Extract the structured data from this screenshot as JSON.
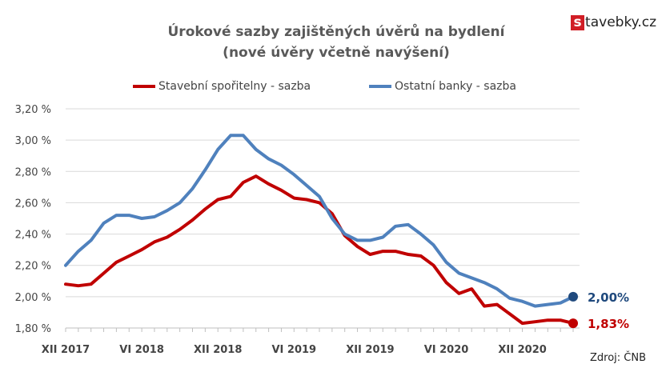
{
  "brand": {
    "logo_letter": "s",
    "logo_rest": "tavebky.cz"
  },
  "source": "Zdroj: ČNB",
  "chart_data": {
    "type": "line",
    "title": "Úrokové sazby zajištěných úvěrů na bydlení",
    "subtitle": "(nové úvěry včetně navýšení)",
    "xlabel": "",
    "ylabel": "",
    "ylim": [
      1.8,
      3.2
    ],
    "yticks": [
      "1,80 %",
      "2,00 %",
      "2,20 %",
      "2,40 %",
      "2,60 %",
      "2,80 %",
      "3,00 %",
      "3,20 %"
    ],
    "ytick_values": [
      1.8,
      2.0,
      2.2,
      2.4,
      2.6,
      2.8,
      3.0,
      3.2
    ],
    "x_tick_labels": [
      {
        "index": 0,
        "label": "XII 2017"
      },
      {
        "index": 6,
        "label": "VI 2018"
      },
      {
        "index": 12,
        "label": "XII 2018"
      },
      {
        "index": 18,
        "label": "VI 2019"
      },
      {
        "index": 24,
        "label": "XII 2019"
      },
      {
        "index": 30,
        "label": "VI 2020"
      },
      {
        "index": 36,
        "label": "XII 2020"
      }
    ],
    "x_count": 41,
    "grid": "horizontal",
    "legend_position": "top",
    "series": [
      {
        "name": "Stavební spořitelny - sazba",
        "color": "#c00000",
        "end_label": "1,83%",
        "end_label_color": "#c00000",
        "values": [
          2.08,
          2.07,
          2.08,
          2.15,
          2.22,
          2.26,
          2.3,
          2.35,
          2.38,
          2.43,
          2.49,
          2.56,
          2.62,
          2.64,
          2.73,
          2.77,
          2.72,
          2.68,
          2.63,
          2.62,
          2.6,
          2.53,
          2.39,
          2.32,
          2.27,
          2.29,
          2.29,
          2.27,
          2.26,
          2.2,
          2.09,
          2.02,
          2.05,
          1.94,
          1.95,
          1.89,
          1.83,
          1.84,
          1.85,
          1.85,
          1.83
        ]
      },
      {
        "name": "Ostatní banky - sazba",
        "color": "#4f81bd",
        "end_label": "2,00%",
        "end_label_color": "#1f497d",
        "values": [
          2.2,
          2.29,
          2.36,
          2.47,
          2.52,
          2.52,
          2.5,
          2.51,
          2.55,
          2.6,
          2.69,
          2.81,
          2.94,
          3.03,
          3.03,
          2.94,
          2.88,
          2.84,
          2.78,
          2.71,
          2.64,
          2.5,
          2.4,
          2.36,
          2.36,
          2.38,
          2.45,
          2.46,
          2.4,
          2.33,
          2.22,
          2.15,
          2.12,
          2.09,
          2.05,
          1.99,
          1.97,
          1.94,
          1.95,
          1.96,
          2.0
        ]
      }
    ]
  }
}
